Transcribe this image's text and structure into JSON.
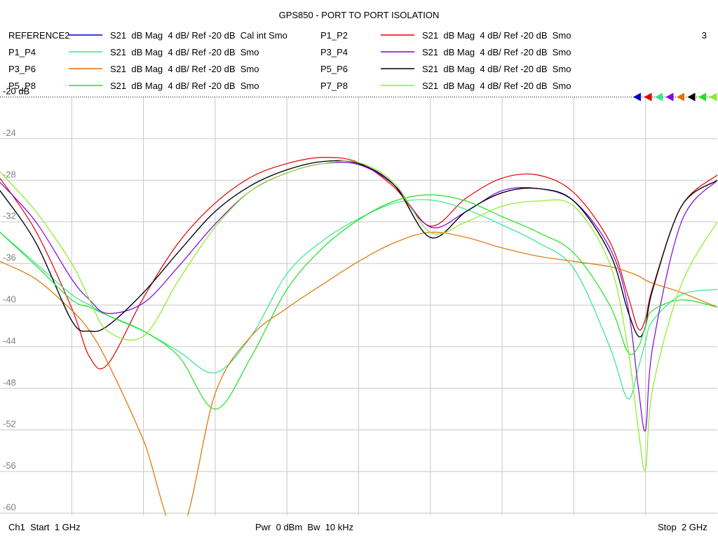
{
  "chart_data": {
    "type": "line",
    "title": "GPS850 - PORT TO PORT ISOLATION",
    "channel_number": "3",
    "footer": {
      "start": "Ch1  Start  1 GHz",
      "power": "Pwr  0 dBm  Bw  10 kHz",
      "stop": "Stop  2 GHz"
    },
    "xlim": [
      1,
      2
    ],
    "xticks": [
      1.1,
      1.2,
      1.3,
      1.4,
      1.5,
      1.6,
      1.7,
      1.8,
      1.9
    ],
    "ylim": [
      -60,
      -20
    ],
    "yticks": [
      {
        "value": -20,
        "label": "-20 dB"
      },
      -24,
      -28,
      -32,
      -36,
      -40,
      -44,
      -48,
      -52,
      -56,
      -60
    ],
    "grid": true,
    "x": [
      1.0,
      1.05,
      1.1,
      1.125,
      1.15,
      1.2,
      1.25,
      1.3,
      1.35,
      1.4,
      1.45,
      1.5,
      1.55,
      1.6,
      1.65,
      1.7,
      1.75,
      1.8,
      1.85,
      1.875,
      1.89,
      1.9,
      1.91,
      1.95,
      2.0
    ],
    "series": [
      {
        "name": "REFERENCE2",
        "format": "S21  dB Mag  4 dB/ Ref -20 dB  Cal int Smo",
        "color": "#0000c8",
        "values": [
          -29,
          -34,
          -41.5,
          -42.5,
          -42,
          -38.8,
          -34.8,
          -31,
          -28.5,
          -27,
          -26.2,
          -26.4,
          -28.5,
          -33.5,
          -31,
          -29.2,
          -28.8,
          -30,
          -35,
          -40.5,
          -43,
          -42,
          -38.5,
          -30.5,
          -28
        ]
      },
      {
        "name": "P1_P2",
        "format": "S21  dB Mag  4 dB/ Ref -20 dB  Smo",
        "color": "#e00000",
        "values": [
          -27.8,
          -32.9,
          -40.3,
          -45,
          -45.7,
          -39.3,
          -33.9,
          -30.2,
          -27.7,
          -26.4,
          -25.8,
          -26.3,
          -28.7,
          -32.4,
          -29.7,
          -27.8,
          -27.5,
          -29.2,
          -33.9,
          -39,
          -42.3,
          -41.3,
          -38.3,
          -30.5,
          -27.5
        ]
      },
      {
        "name": "P1_P4",
        "format": "S21  dB Mag  4 dB/ Ref -20 dB  Smo",
        "color": "#30e890",
        "values": [
          -33,
          -36,
          -39,
          -40,
          -41,
          -42.5,
          -44.5,
          -46.5,
          -43,
          -37,
          -33.8,
          -31.7,
          -30.2,
          -29.9,
          -30.8,
          -32.3,
          -34,
          -36.5,
          -44,
          -49,
          -46,
          -43.5,
          -41.5,
          -39,
          -38.5
        ]
      },
      {
        "name": "P3_P4",
        "format": "S21  dB Mag  4 dB/ Ref -20 dB  Smo",
        "color": "#8000e0",
        "values": [
          -28.2,
          -32,
          -37.5,
          -39.5,
          -40.8,
          -39.8,
          -36.2,
          -32.2,
          -29,
          -27.3,
          -26.4,
          -26.5,
          -28.5,
          -32.5,
          -31,
          -29,
          -28.8,
          -30,
          -34.5,
          -40,
          -48,
          -52,
          -44,
          -32,
          -28
        ]
      },
      {
        "name": "P3_P6",
        "format": "S21  dB Mag  4 dB/ Ref -20 dB  Smo",
        "color": "#e07000",
        "values": [
          -35.8,
          -37.5,
          -40.5,
          -42.5,
          -45.5,
          -53,
          -62,
          -48.5,
          -43,
          -40.3,
          -38,
          -35.8,
          -34,
          -33,
          -33.5,
          -34.5,
          -35.3,
          -35.8,
          -36.3,
          -36.8,
          -37.2,
          -37.6,
          -37.9,
          -38.8,
          -40.2
        ]
      },
      {
        "name": "P5_P6",
        "format": "S21  dB Mag  4 dB/ Ref -20 dB  Smo",
        "color": "#000000",
        "values": [
          -29,
          -34,
          -41.5,
          -42.5,
          -42,
          -38.8,
          -34.8,
          -31,
          -28.5,
          -27,
          -26.2,
          -26.4,
          -28.5,
          -33.5,
          -31,
          -29.2,
          -28.8,
          -30,
          -35,
          -40.5,
          -43,
          -42,
          -38.5,
          -30.5,
          -28
        ]
      },
      {
        "name": "P5_P8",
        "format": "S21  dB Mag  4 dB/ Ref -20 dB  Smo",
        "color": "#20e020",
        "values": [
          -33,
          -36.2,
          -39.5,
          -40.2,
          -41,
          -42.5,
          -45,
          -50,
          -45,
          -38.5,
          -34.5,
          -31.8,
          -30,
          -29.4,
          -30,
          -31.5,
          -33,
          -35,
          -40,
          -44.5,
          -44,
          -42,
          -40.5,
          -39.5,
          -40.2
        ]
      },
      {
        "name": "P7_P8",
        "format": "S21  dB Mag  4 dB/ Ref -20 dB  Smo",
        "color": "#88ee22",
        "values": [
          -27.2,
          -31,
          -36,
          -39.5,
          -42.5,
          -43,
          -37.5,
          -32.5,
          -29,
          -27.3,
          -26.4,
          -26.3,
          -28.3,
          -33,
          -32,
          -30.5,
          -30,
          -30.5,
          -36,
          -44,
          -52,
          -55.8,
          -48,
          -38,
          -32
        ]
      }
    ]
  }
}
